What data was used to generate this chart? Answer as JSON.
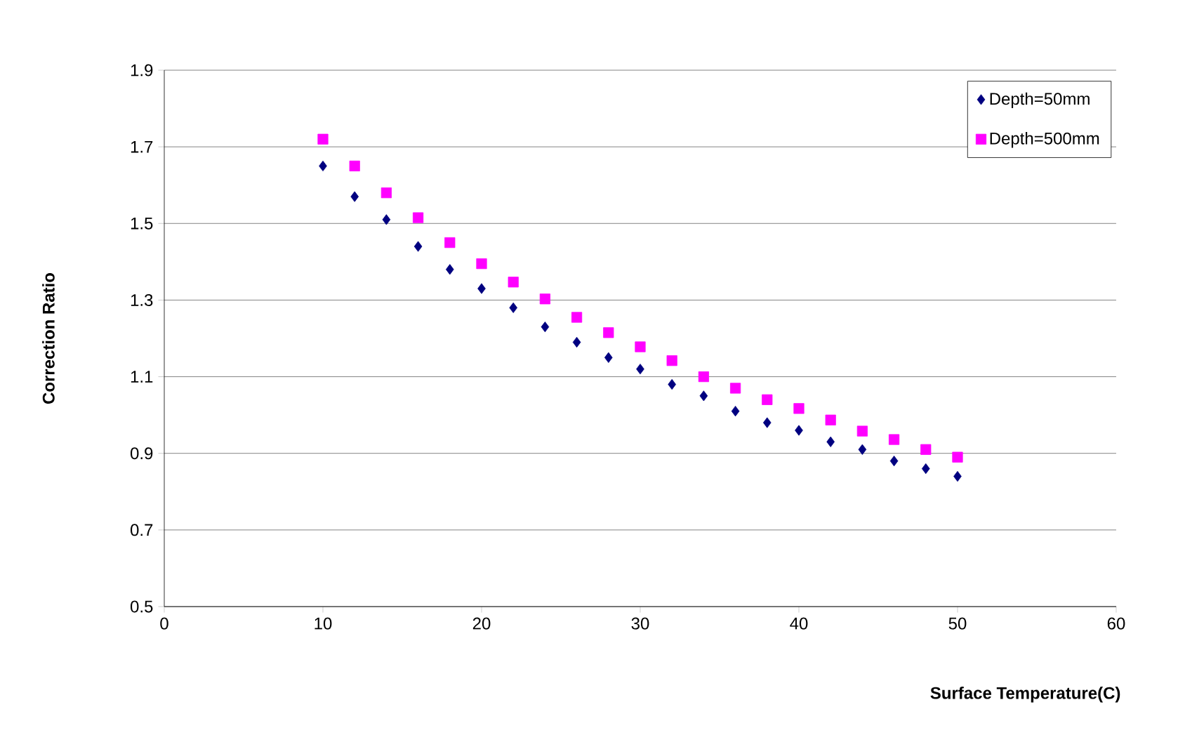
{
  "chart_data": {
    "type": "scatter",
    "xlabel": "Surface Temperature(C)",
    "ylabel": "Correction Ratio",
    "x": [
      10,
      12,
      14,
      16,
      18,
      20,
      22,
      24,
      26,
      28,
      30,
      32,
      34,
      36,
      38,
      40,
      42,
      44,
      46,
      48,
      50
    ],
    "series": [
      {
        "name": "Depth=50mm",
        "color": "#000080",
        "marker": "diamond",
        "values": [
          1.65,
          1.57,
          1.51,
          1.44,
          1.38,
          1.33,
          1.28,
          1.23,
          1.19,
          1.15,
          1.12,
          1.08,
          1.05,
          1.01,
          0.98,
          0.96,
          0.93,
          0.91,
          0.88,
          0.86,
          0.84
        ]
      },
      {
        "name": "Depth=500mm",
        "color": "#ff00ff",
        "marker": "square",
        "values": [
          1.72,
          1.65,
          1.58,
          1.515,
          1.45,
          1.395,
          1.347,
          1.303,
          1.255,
          1.215,
          1.178,
          1.142,
          1.1,
          1.07,
          1.04,
          1.017,
          0.987,
          0.958,
          0.936,
          0.91,
          0.89
        ]
      }
    ],
    "xlim": [
      0,
      60
    ],
    "xticks": [
      0,
      10,
      20,
      30,
      40,
      50,
      60
    ],
    "ylim": [
      0.5,
      1.9
    ],
    "yticks": [
      0.5,
      0.7,
      0.9,
      1.1,
      1.3,
      1.5,
      1.7,
      1.9
    ],
    "grid": "y",
    "legend": "top right"
  }
}
